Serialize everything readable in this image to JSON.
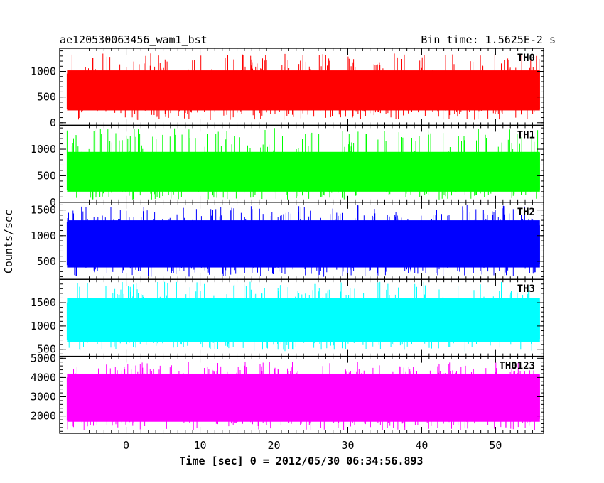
{
  "header": {
    "title": "ae120530063456_wam1_bst",
    "bin_time": "Bin time: 1.5625E-2 s"
  },
  "chart_data": {
    "type": "line",
    "title": "ae120530063456_wam1_bst",
    "xlabel": "Time [sec] 0 = 2012/05/30 06:34:56.893",
    "ylabel": "Counts/sec",
    "xlim": [
      -9,
      56.5
    ],
    "x_range_of_data": [
      -8,
      56
    ],
    "x_ticks": [
      "0",
      "10",
      "20",
      "30",
      "40",
      "50"
    ],
    "panels": [
      {
        "name": "TH0",
        "color": "#ff0000",
        "ylim": [
          -50,
          1450
        ],
        "y_ticks": [
          "0",
          "500",
          "1000"
        ],
        "band_low": 50,
        "band_high": 1350,
        "core_low": 240,
        "core_high": 1020,
        "mean": 640
      },
      {
        "name": "TH1",
        "color": "#00ff00",
        "ylim": [
          0,
          1450
        ],
        "y_ticks": [
          "0",
          "500",
          "1000"
        ],
        "band_low": 50,
        "band_high": 1400,
        "core_low": 200,
        "core_high": 950,
        "mean": 580
      },
      {
        "name": "TH2",
        "color": "#0000ff",
        "ylim": [
          150,
          1650
        ],
        "y_ticks": [
          "500",
          "1000",
          "1500"
        ],
        "band_low": 200,
        "band_high": 1600,
        "core_low": 380,
        "core_high": 1300,
        "mean": 820
      },
      {
        "name": "TH3",
        "color": "#00ffff",
        "ylim": [
          350,
          2000
        ],
        "y_ticks": [
          "500",
          "1000",
          "1500"
        ],
        "band_low": 450,
        "band_high": 1950,
        "core_low": 650,
        "core_high": 1600,
        "mean": 1100
      },
      {
        "name": "TH0123",
        "color": "#ff00ff",
        "ylim": [
          1100,
          5100
        ],
        "y_ticks": [
          "2000",
          "3000",
          "4000",
          "5000"
        ],
        "band_low": 1250,
        "band_high": 4800,
        "core_low": 1700,
        "core_high": 4200,
        "mean": 2900
      }
    ]
  }
}
